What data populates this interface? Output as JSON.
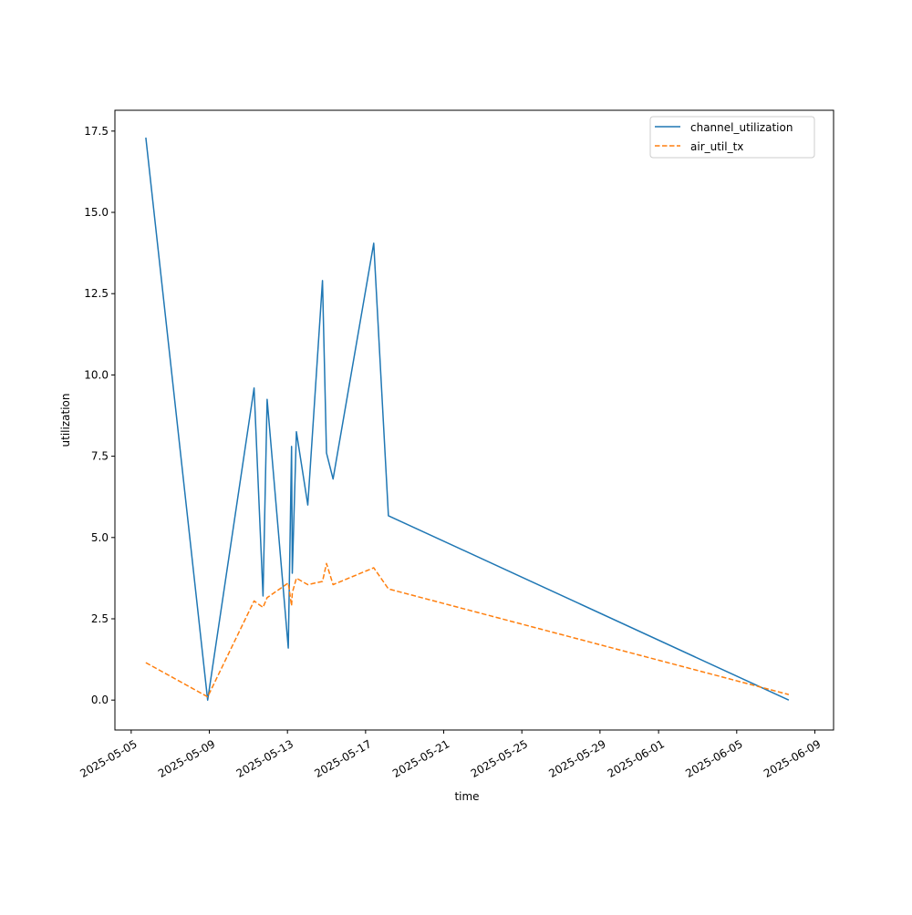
{
  "chart_data": {
    "type": "line",
    "title": "",
    "xlabel": "time",
    "ylabel": "utilization",
    "x_ticks": [
      "2025-05-05",
      "2025-05-09",
      "2025-05-13",
      "2025-05-17",
      "2025-05-21",
      "2025-05-25",
      "2025-05-29",
      "2025-06-01",
      "2025-06-05",
      "2025-06-09"
    ],
    "y_ticks": [
      "0.0",
      "2.5",
      "5.0",
      "7.5",
      "10.0",
      "12.5",
      "15.0",
      "17.5"
    ],
    "xlim": [
      "2025-05-04T04:00",
      "2025-06-09T23:00"
    ],
    "ylim": [
      -0.92,
      18.14
    ],
    "grid": false,
    "legend_position": "top-right",
    "x": [
      "2025-05-05T18:00",
      "2025-05-08T22:00",
      "2025-05-11T07:00",
      "2025-05-11T18:00",
      "2025-05-11T23:00",
      "2025-05-13T01:00",
      "2025-05-13T05:00",
      "2025-05-13T06:00",
      "2025-05-13T11:00",
      "2025-05-14T01:00",
      "2025-05-14T19:00",
      "2025-05-15T00:00",
      "2025-05-15T08:00",
      "2025-05-17T10:00",
      "2025-05-18T04:00",
      "2025-06-07T16:00"
    ],
    "series": [
      {
        "name": "channel_utilization",
        "color": "#1f77b4",
        "style": "solid",
        "values": [
          17.3,
          0.0,
          9.6,
          3.2,
          9.25,
          1.6,
          7.8,
          3.9,
          8.25,
          6.0,
          12.9,
          7.6,
          6.8,
          14.05,
          5.67,
          0.0
        ]
      },
      {
        "name": "air_util_tx",
        "color": "#ff7f0e",
        "style": "dashed",
        "values": [
          1.15,
          0.1,
          3.05,
          2.85,
          3.15,
          3.6,
          2.9,
          3.3,
          3.75,
          3.55,
          3.65,
          4.2,
          3.55,
          4.07,
          3.42,
          0.17
        ]
      }
    ]
  }
}
